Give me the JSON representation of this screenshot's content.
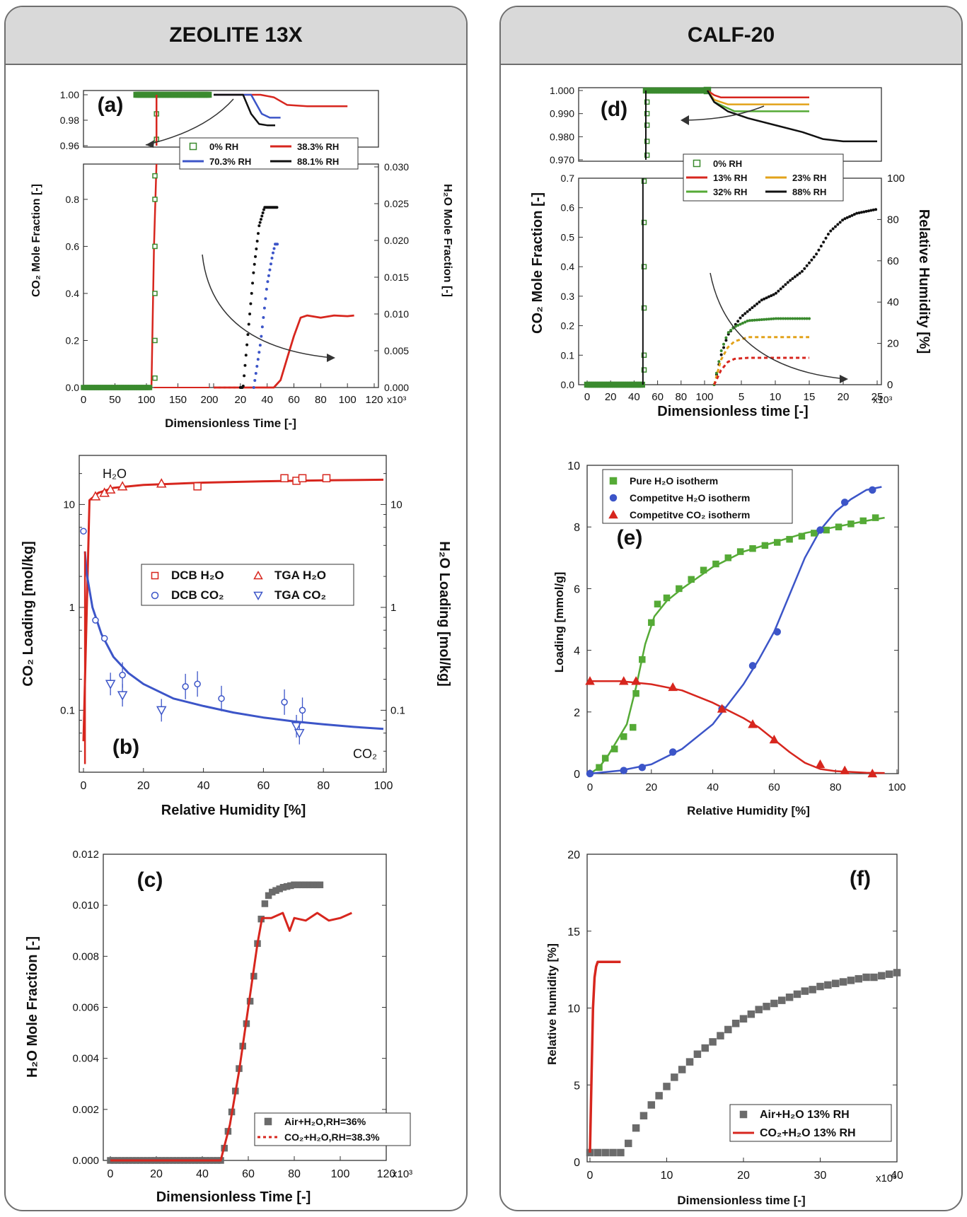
{
  "panels": {
    "left_title": "ZEOLITE 13X",
    "right_title": "CALF-20"
  },
  "chart_data": [
    {
      "id": "a",
      "type": "line",
      "panel_label": "(a)",
      "title": "",
      "xlabel": "Dimensionless Time [-]",
      "ylabel": "CO₂ Mole Fraction [-]",
      "ylabel_right": "H₂O Mole Fraction [-]",
      "x_multiplier": "x10³",
      "x_ticks_left": [
        "0",
        "50",
        "100",
        "150",
        "200"
      ],
      "x_ticks_right": [
        "0",
        "20",
        "40",
        "60",
        "80",
        "100",
        "120"
      ],
      "y_ticks_main": [
        "0.0",
        "0.2",
        "0.4",
        "0.6",
        "0.8"
      ],
      "y_ticks_top": [
        "0.96",
        "0.98",
        "1.00"
      ],
      "y_ticks_right": [
        "0.000",
        "0.005",
        "0.010",
        "0.015",
        "0.020",
        "0.025",
        "0.030"
      ],
      "legend": [
        "0% RH",
        "38.3% RH",
        "70.3% RH",
        "88.1% RH"
      ],
      "series": [
        {
          "name": "0% RH",
          "x": [
            0,
            30,
            60,
            90,
            108,
            110,
            112,
            114,
            116,
            200
          ],
          "y": [
            0,
            0,
            0,
            0,
            0,
            0.15,
            0.45,
            0.75,
            1.0,
            1.0
          ]
        },
        {
          "name": "38.3% RH",
          "x": [
            0,
            45,
            50,
            55,
            60,
            65,
            70,
            80,
            90,
            100,
            105
          ],
          "y": [
            0,
            0,
            0.001,
            0.004,
            0.007,
            0.0095,
            0.0098,
            0.0095,
            0.0098,
            0.0097,
            0.0098
          ]
        },
        {
          "name": "70.3% RH",
          "x": [
            0,
            30,
            35,
            40,
            44,
            46,
            48
          ],
          "y": [
            0,
            0,
            0.006,
            0.014,
            0.018,
            0.0195,
            0.0195
          ]
        },
        {
          "name": "88.1% RH",
          "x": [
            0,
            22,
            26,
            30,
            34,
            38,
            48
          ],
          "y": [
            0,
            0,
            0.008,
            0.016,
            0.022,
            0.0245,
            0.0245
          ]
        }
      ]
    },
    {
      "id": "b",
      "type": "scatter",
      "panel_label": "(b)",
      "xlabel": "Relative Humidity [%]",
      "ylabel": "CO₂ Loading [mol/kg]",
      "ylabel_right": "H₂O Loading [mol/kg]",
      "x_ticks": [
        "0",
        "20",
        "40",
        "60",
        "80",
        "100"
      ],
      "y_ticks": [
        "0.1",
        "1",
        "10"
      ],
      "annotations": [
        "H₂O",
        "CO₂"
      ],
      "legend": [
        "DCB H₂O",
        "TGA H₂O",
        "DCB CO₂",
        "TGA CO₂"
      ],
      "series": [
        {
          "name": "DCB H₂O",
          "x": [
            38,
            67,
            71,
            73,
            81
          ],
          "y": [
            15,
            18,
            17,
            18,
            18
          ]
        },
        {
          "name": "TGA H₂O",
          "x": [
            4,
            7,
            9,
            13,
            26
          ],
          "y": [
            12,
            13,
            14,
            15,
            16
          ]
        },
        {
          "name": "DCB CO₂",
          "x": [
            0,
            4,
            7,
            13,
            34,
            38,
            46,
            67,
            73
          ],
          "y": [
            5.5,
            0.75,
            0.5,
            0.22,
            0.17,
            0.18,
            0.13,
            0.12,
            0.1
          ]
        },
        {
          "name": "TGA CO₂",
          "x": [
            9,
            13,
            26,
            71,
            72
          ],
          "y": [
            0.18,
            0.14,
            0.1,
            0.07,
            0.06
          ]
        },
        {
          "name": "H₂O fit",
          "x": [
            0,
            2,
            5,
            10,
            20,
            40,
            60,
            80,
            100
          ],
          "y": [
            0.05,
            11,
            13,
            14.5,
            15.5,
            16.3,
            16.8,
            17.2,
            17.4
          ]
        },
        {
          "name": "CO₂ fit",
          "x": [
            0.5,
            1,
            3,
            6,
            10,
            15,
            20,
            30,
            40,
            50,
            60,
            70,
            80,
            90,
            100
          ],
          "y": [
            3.5,
            2.2,
            1.0,
            0.55,
            0.33,
            0.23,
            0.18,
            0.13,
            0.11,
            0.095,
            0.085,
            0.078,
            0.073,
            0.069,
            0.066
          ]
        }
      ]
    },
    {
      "id": "c",
      "type": "line",
      "panel_label": "(c)",
      "xlabel": "Dimensionless Time [-]",
      "ylabel": "H₂O Mole Fraction [-]",
      "x_multiplier": "x10³",
      "x_ticks": [
        "0",
        "20",
        "40",
        "60",
        "80",
        "100",
        "120"
      ],
      "y_ticks": [
        "0.000",
        "0.002",
        "0.004",
        "0.006",
        "0.008",
        "0.010",
        "0.012"
      ],
      "legend": [
        "Air+H₂O,RH=36%",
        "CO₂+H₂O,RH=38.3%"
      ],
      "series": [
        {
          "name": "Air+H₂O,RH=36%",
          "x": [
            0,
            10,
            20,
            30,
            40,
            48,
            50,
            52,
            54,
            56,
            58,
            60,
            62,
            64,
            66,
            68,
            70,
            75,
            80,
            85,
            92
          ],
          "y": [
            0,
            0,
            0,
            0,
            0,
            0,
            0.0006,
            0.0015,
            0.0025,
            0.0036,
            0.0047,
            0.0058,
            0.0069,
            0.0085,
            0.0097,
            0.0103,
            0.0105,
            0.0107,
            0.0108,
            0.0108,
            0.0108
          ]
        },
        {
          "name": "CO₂+H₂O,RH=38.3%",
          "x": [
            0,
            48,
            52,
            56,
            60,
            64,
            66,
            70,
            75,
            78,
            80,
            85,
            90,
            95,
            100,
            105
          ],
          "y": [
            0,
            0,
            0.0014,
            0.0035,
            0.006,
            0.0085,
            0.0095,
            0.0095,
            0.0097,
            0.009,
            0.0095,
            0.0094,
            0.0097,
            0.0094,
            0.0095,
            0.0097
          ]
        }
      ]
    },
    {
      "id": "d",
      "type": "line",
      "panel_label": "(d)",
      "xlabel": "Dimensionless time [-]",
      "ylabel": "CO₂ Mole Fraction [-]",
      "ylabel_right": "Relative Humidity [%]",
      "x_multiplier": "x10³",
      "x_ticks_left": [
        "0",
        "20",
        "40",
        "60",
        "80",
        "100"
      ],
      "x_ticks_right": [
        "5",
        "10",
        "15",
        "20",
        "25"
      ],
      "y_ticks_main": [
        "0.0",
        "0.1",
        "0.2",
        "0.3",
        "0.4",
        "0.5",
        "0.6",
        "0.7"
      ],
      "y_ticks_top": [
        "0.970",
        "0.980",
        "0.990",
        "1.000"
      ],
      "y_ticks_right": [
        "0",
        "20",
        "40",
        "60",
        "80",
        "100"
      ],
      "legend": [
        "0% RH",
        "13% RH",
        "23% RH",
        "32% RH",
        "88% RH"
      ],
      "series": [
        {
          "name": "0% RH",
          "x": [
            0,
            20,
            40,
            46,
            47,
            48,
            49,
            50,
            100
          ],
          "y": [
            0,
            0,
            0,
            0,
            0.1,
            0.35,
            0.62,
            1.0,
            1.0
          ]
        },
        {
          "name": "13% RH",
          "x": [
            1,
            2,
            3,
            4,
            6,
            10,
            15
          ],
          "y": [
            0,
            7,
            11,
            12.5,
            13,
            13,
            13
          ]
        },
        {
          "name": "23% RH",
          "x": [
            1,
            2,
            3,
            4,
            6,
            10,
            15
          ],
          "y": [
            0,
            12,
            18,
            21,
            23,
            23,
            23
          ]
        },
        {
          "name": "32% RH",
          "x": [
            1,
            2,
            3,
            4,
            6,
            10,
            15
          ],
          "y": [
            0,
            16,
            25,
            28,
            31,
            32,
            32
          ]
        },
        {
          "name": "88% RH",
          "x": [
            1,
            2,
            3,
            5,
            8,
            10,
            12,
            14,
            16,
            18,
            20,
            22,
            25
          ],
          "y": [
            0,
            14,
            24,
            33,
            41,
            44,
            50,
            55,
            63,
            74,
            80,
            83,
            85
          ]
        }
      ]
    },
    {
      "id": "e",
      "type": "scatter",
      "panel_label": "(e)",
      "xlabel": "Relative Humidity [%]",
      "ylabel": "Loading [mmol/g]",
      "x_ticks": [
        "0",
        "20",
        "40",
        "60",
        "80",
        "100"
      ],
      "y_ticks": [
        "0",
        "2",
        "4",
        "6",
        "8",
        "10"
      ],
      "ylim": [
        0,
        10
      ],
      "legend": [
        "Pure H₂O isotherm",
        "Competitve H₂O isotherm",
        "Competitve CO₂ isotherm"
      ],
      "series": [
        {
          "name": "Pure H₂O isotherm",
          "x": [
            3,
            5,
            8,
            11,
            14,
            15,
            17,
            20,
            22,
            25,
            29,
            33,
            37,
            41,
            45,
            49,
            53,
            57,
            61,
            65,
            69,
            73,
            77,
            81,
            85,
            89,
            93
          ],
          "y": [
            0.2,
            0.5,
            0.8,
            1.2,
            1.5,
            2.6,
            3.7,
            4.9,
            5.5,
            5.7,
            6.0,
            6.3,
            6.6,
            6.8,
            7.0,
            7.2,
            7.3,
            7.4,
            7.5,
            7.6,
            7.7,
            7.8,
            7.9,
            8.0,
            8.1,
            8.2,
            8.3
          ]
        },
        {
          "name": "Competitve H₂O isotherm",
          "x": [
            0,
            11,
            17,
            27,
            43,
            53,
            61,
            75,
            83,
            92
          ],
          "y": [
            0,
            0.1,
            0.2,
            0.7,
            2.1,
            3.5,
            4.6,
            7.9,
            8.8,
            9.2
          ]
        },
        {
          "name": "Competitve CO₂ isotherm",
          "x": [
            0,
            11,
            15,
            27,
            43,
            53,
            60,
            75,
            83,
            92
          ],
          "y": [
            3.0,
            3.0,
            3.0,
            2.8,
            2.1,
            1.6,
            1.1,
            0.3,
            0.1,
            0.0
          ]
        }
      ]
    },
    {
      "id": "f",
      "type": "line",
      "panel_label": "(f)",
      "xlabel": "Dimensionless time [-]",
      "ylabel": "Relative humidity [%]",
      "x_multiplier": "x10³",
      "x_ticks": [
        "0",
        "10",
        "20",
        "30",
        "40"
      ],
      "y_ticks": [
        "0",
        "5",
        "10",
        "15",
        "20"
      ],
      "ylim": [
        0,
        20
      ],
      "legend": [
        "Air+H₂O 13% RH",
        "CO₂+H₂O 13% RH"
      ],
      "series": [
        {
          "name": "Air+H₂O 13% RH",
          "x": [
            0,
            1,
            2,
            3,
            4,
            5,
            6,
            7,
            8,
            9,
            10,
            11,
            12,
            13,
            14,
            15,
            16,
            17,
            18,
            19,
            20,
            21,
            22,
            23,
            24,
            25,
            26,
            27,
            28,
            29,
            30,
            31,
            32,
            33,
            34,
            35,
            36,
            37,
            38,
            39,
            40
          ],
          "y": [
            0.6,
            0.6,
            0.6,
            0.6,
            0.6,
            1.2,
            2.2,
            3.0,
            3.7,
            4.3,
            4.9,
            5.5,
            6.0,
            6.5,
            7.0,
            7.4,
            7.8,
            8.2,
            8.6,
            9.0,
            9.3,
            9.6,
            9.9,
            10.1,
            10.3,
            10.5,
            10.7,
            10.9,
            11.1,
            11.2,
            11.4,
            11.5,
            11.6,
            11.7,
            11.8,
            11.9,
            12.0,
            12.0,
            12.1,
            12.2,
            12.3
          ]
        },
        {
          "name": "CO₂+H₂O 13% RH",
          "x": [
            0,
            0.2,
            0.4,
            0.6,
            0.8,
            1.0,
            1.5,
            2,
            3,
            4
          ],
          "y": [
            0.6,
            5.5,
            10,
            12,
            12.7,
            13,
            13,
            13,
            13,
            13
          ]
        }
      ]
    }
  ]
}
